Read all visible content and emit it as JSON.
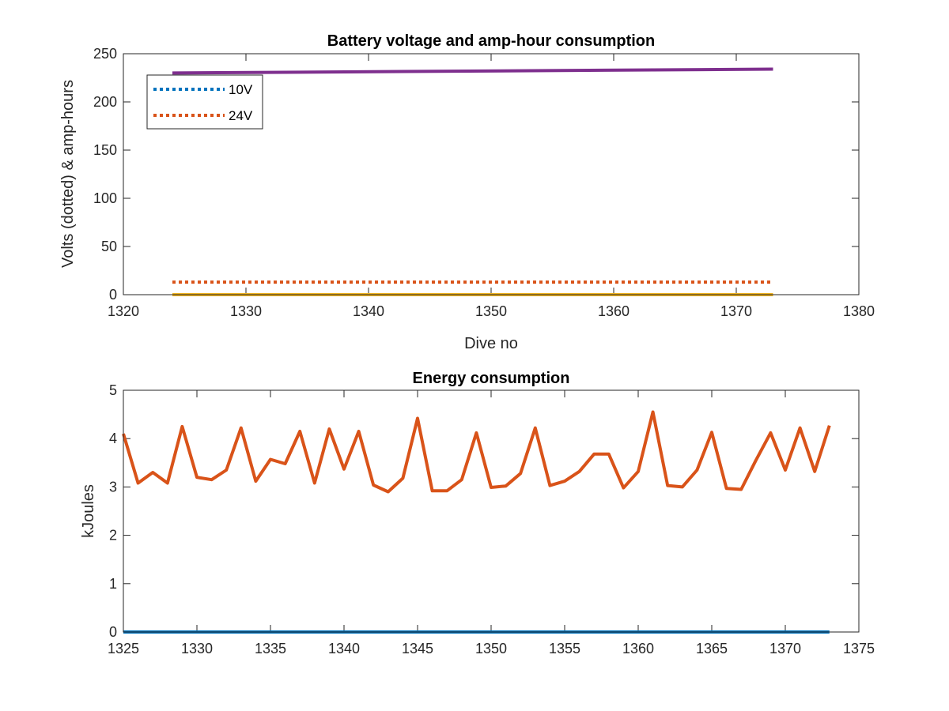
{
  "figure": {
    "background": "#ffffff"
  },
  "chart_data": [
    {
      "type": "line",
      "title": "Battery voltage and amp-hour consumption",
      "xlabel": "Dive no",
      "ylabel": "Volts (dotted) & amp-hours",
      "xlim": [
        1320,
        1380
      ],
      "ylim": [
        0,
        250
      ],
      "xticks": [
        1320,
        1330,
        1340,
        1350,
        1360,
        1370,
        1380
      ],
      "yticks": [
        0,
        50,
        100,
        150,
        200,
        250
      ],
      "grid": false,
      "legend": {
        "placement": "top-left"
      },
      "series": [
        {
          "name": "10V",
          "style": "dotted",
          "color": "#0072BD",
          "x": [
            1324,
            1373
          ],
          "y": [
            0,
            0
          ]
        },
        {
          "name": "24V",
          "style": "dotted",
          "color": "#D95319",
          "x": [
            1324,
            1373
          ],
          "y": [
            13,
            13
          ]
        },
        {
          "style": "solid",
          "color": "#EDB120",
          "x": [
            1324,
            1373
          ],
          "y": [
            0,
            0
          ]
        },
        {
          "style": "solid",
          "color": "#7E2F8E",
          "x": [
            1324,
            1373
          ],
          "y": [
            230,
            234
          ]
        }
      ]
    },
    {
      "type": "line",
      "title": "Energy consumption",
      "xlabel": "",
      "ylabel": "kJoules",
      "xlim": [
        1325,
        1375
      ],
      "ylim": [
        0,
        5
      ],
      "xticks": [
        1325,
        1330,
        1335,
        1340,
        1345,
        1350,
        1355,
        1360,
        1365,
        1370,
        1375
      ],
      "yticks": [
        0,
        1,
        2,
        3,
        4,
        5
      ],
      "grid": false,
      "series": [
        {
          "style": "solid",
          "color": "#0072BD",
          "x": [
            1325,
            1373
          ],
          "y": [
            0,
            0
          ]
        },
        {
          "style": "solid",
          "color": "#D95319",
          "x": [
            1325,
            1326,
            1327,
            1328,
            1329,
            1330,
            1331,
            1332,
            1333,
            1334,
            1335,
            1336,
            1337,
            1338,
            1339,
            1340,
            1341,
            1342,
            1343,
            1344,
            1345,
            1346,
            1347,
            1348,
            1349,
            1350,
            1351,
            1352,
            1353,
            1354,
            1355,
            1356,
            1357,
            1358,
            1359,
            1360,
            1361,
            1362,
            1363,
            1364,
            1365,
            1366,
            1367,
            1368,
            1369,
            1370,
            1371,
            1372,
            1373
          ],
          "y": [
            4.1,
            3.08,
            3.3,
            3.08,
            4.25,
            3.2,
            3.15,
            3.35,
            4.22,
            3.12,
            3.57,
            3.48,
            4.15,
            3.08,
            4.2,
            3.37,
            4.15,
            3.04,
            2.9,
            3.18,
            4.42,
            2.92,
            2.92,
            3.15,
            4.12,
            2.99,
            3.02,
            3.28,
            4.22,
            3.03,
            3.12,
            3.32,
            3.68,
            3.68,
            2.98,
            3.32,
            4.55,
            3.03,
            3.0,
            3.35,
            4.13,
            2.97,
            2.95,
            3.55,
            4.12,
            3.35,
            4.22,
            3.32,
            4.27
          ]
        }
      ]
    }
  ]
}
